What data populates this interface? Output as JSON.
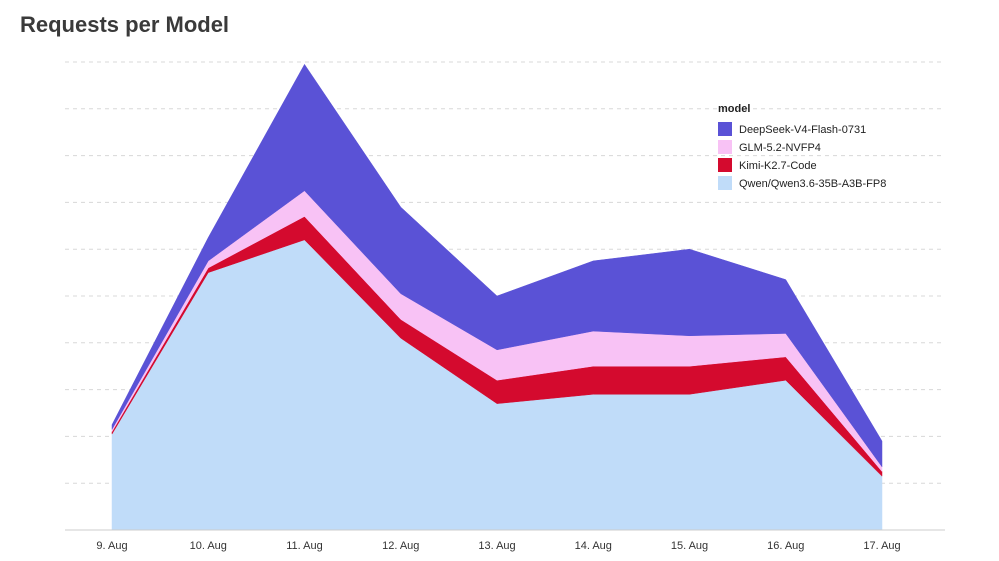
{
  "chart_data": {
    "type": "area",
    "stacked": true,
    "title": "Requests per Model",
    "x": [
      "9. Aug",
      "10. Aug",
      "11. Aug",
      "12. Aug",
      "13. Aug",
      "14. Aug",
      "15. Aug",
      "16. Aug",
      "17. Aug"
    ],
    "ylim": [
      0,
      10
    ],
    "grid": true,
    "legend": {
      "title": "model",
      "placement": "top-right"
    },
    "series": [
      {
        "name": "Qwen/Qwen3.6-35B-A3B-FP8",
        "color": "#c0dcf9",
        "values": [
          2.05,
          5.5,
          6.2,
          4.1,
          2.7,
          2.9,
          2.9,
          3.2,
          1.15
        ]
      },
      {
        "name": "Kimi-K2.7-Code",
        "color": "#d40a2e",
        "values": [
          0.05,
          0.1,
          0.5,
          0.4,
          0.5,
          0.6,
          0.6,
          0.5,
          0.1
        ]
      },
      {
        "name": "GLM-5.2-NVFP4",
        "color": "#f8c2f5",
        "values": [
          0.05,
          0.15,
          0.55,
          0.55,
          0.65,
          0.75,
          0.65,
          0.5,
          0.1
        ]
      },
      {
        "name": "DeepSeek-V4-Flash-0731",
        "color": "#5a52d6",
        "values": [
          0.1,
          0.5,
          2.7,
          1.85,
          1.15,
          1.5,
          1.85,
          1.15,
          0.55
        ]
      }
    ]
  }
}
